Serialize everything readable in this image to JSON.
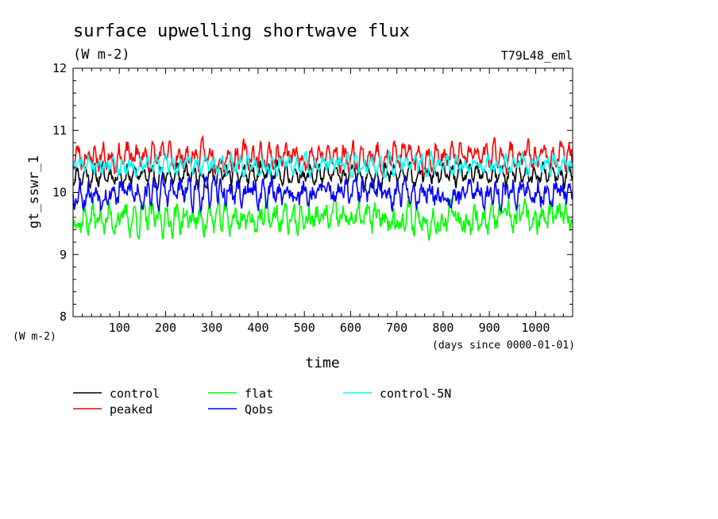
{
  "chart_data": {
    "type": "line",
    "title": "surface upwelling shortwave flux",
    "subtitle": "(W m-2)",
    "run_label": "T79L48_eml",
    "xlabel": "time",
    "x_units": "(days since 0000-01-01)",
    "ylabel": "gt_sswr_1",
    "y_units": "(W m-2)",
    "xlim": [
      0,
      1080
    ],
    "ylim": [
      8,
      12
    ],
    "x_ticks": [
      100,
      200,
      300,
      400,
      500,
      600,
      700,
      800,
      900,
      1000
    ],
    "y_ticks": [
      8,
      9,
      10,
      11,
      12
    ],
    "series": [
      {
        "name": "control",
        "color": "#000000",
        "mean": 10.28,
        "amp": 0.11,
        "noise": 0.09,
        "seed": 11
      },
      {
        "name": "peaked",
        "color": "#ff0000",
        "mean": 10.58,
        "amp": 0.12,
        "noise": 0.13,
        "seed": 23
      },
      {
        "name": "flat",
        "color": "#00ff00",
        "mean": 9.58,
        "amp": 0.12,
        "noise": 0.16,
        "seed": 37
      },
      {
        "name": "Qobs",
        "color": "#0000ff",
        "mean": 10.0,
        "amp": 0.12,
        "noise": 0.15,
        "seed": 53
      },
      {
        "name": "control-5N",
        "color": "#00ffff",
        "mean": 10.44,
        "amp": 0.08,
        "noise": 0.1,
        "seed": 71
      }
    ],
    "legend_placement": "bottom-left"
  }
}
